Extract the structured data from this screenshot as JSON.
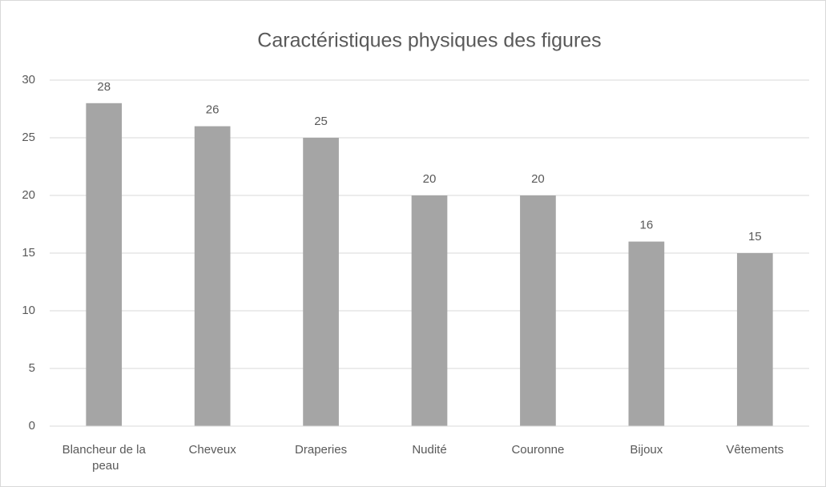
{
  "chart_data": {
    "type": "bar",
    "title": "Caractéristiques physiques des figures",
    "categories": [
      "Blancheur de la peau",
      "Cheveux",
      "Draperies",
      "Nudité",
      "Couronne",
      "Bijoux",
      "Vêtements"
    ],
    "values": [
      28,
      26,
      25,
      20,
      20,
      16,
      15
    ],
    "color": "#a5a5a5",
    "ylim": [
      0,
      30
    ],
    "yticks": [
      0,
      5,
      10,
      15,
      20,
      25,
      30
    ],
    "grid": true
  }
}
